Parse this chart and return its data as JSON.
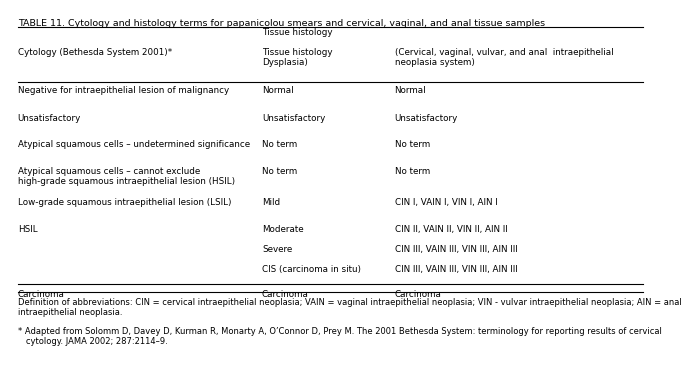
{
  "title": "TABLE 11. Cytology and histology terms for papanicolou smears and cervical, vaginal, and anal tissue samples",
  "footnote1": "Definition of abbreviations: CIN = cervical intraepithelial neoplasia; VAIN = vaginal intraepithelial neoplasia; VIN - vulvar intraepithelial neoplasia; AIN = anal intraepithelial neoplasia.",
  "footnote2": "* Adapted from Solomm D, Davey D, Kurman R, Monarty A, O’Connor D, Prey M. The 2001 Bethesda System: terminology for reporting results of cervical cytology. JAMA 2002; 287:2114–9.",
  "bg_color": "#ffffff",
  "text_color": "#000000",
  "font_size": 6.3,
  "title_font_size": 6.8
}
